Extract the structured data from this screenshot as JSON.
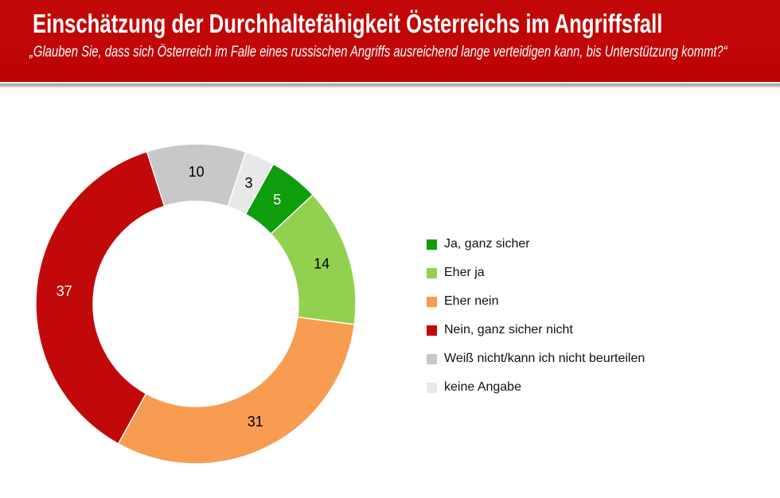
{
  "header": {
    "title": "Einschätzung der Durchhaltefähigkeit Österreichs im Angriffsfall",
    "subtitle": "„Glauben Sie, dass sich Österreich im Falle eines russischen Angriffs ausreichend lange verteidigen kann, bis Unterstützung kommt?“",
    "background_color": "#c00606",
    "text_color": "#ffffff"
  },
  "chart_data": {
    "type": "pie",
    "subtype": "donut",
    "title": "Einschätzung der Durchhaltefähigkeit Österreichs im Angriffsfall",
    "question": "„Glauben Sie, dass sich Österreich im Falle eines russischen Angriffs ausreichend lange verteidigen kann, bis Unterstützung kommt?“",
    "values_unit": "percent",
    "total": 100,
    "start_angle_deg": 29,
    "donut_hole_ratio": 0.64,
    "grid": false,
    "legend_position": "right",
    "categories": [
      "Ja, ganz sicher",
      "Eher ja",
      "Eher nein",
      "Nein, ganz sicher nicht",
      "Weiß nicht/kann ich nicht beurteilen",
      "keine Angabe"
    ],
    "values": [
      5,
      14,
      31,
      37,
      10,
      3
    ],
    "segments": [
      {
        "label": "Ja, ganz sicher",
        "value": 5,
        "color": "#0d9d0d",
        "label_color": "#ffffff"
      },
      {
        "label": "Eher ja",
        "value": 14,
        "color": "#92d050",
        "label_color": "#000000"
      },
      {
        "label": "Eher nein",
        "value": 31,
        "color": "#f89c52",
        "label_color": "#000000"
      },
      {
        "label": "Nein, ganz sicher nicht",
        "value": 37,
        "color": "#c20909",
        "label_color": "#ffffff"
      },
      {
        "label": "Weiß nicht/kann ich nicht beurteilen",
        "value": 10,
        "color": "#c8c8c8",
        "label_color": "#000000"
      },
      {
        "label": "keine Angabe",
        "value": 3,
        "color": "#e8e8e8",
        "label_color": "#000000"
      }
    ]
  }
}
